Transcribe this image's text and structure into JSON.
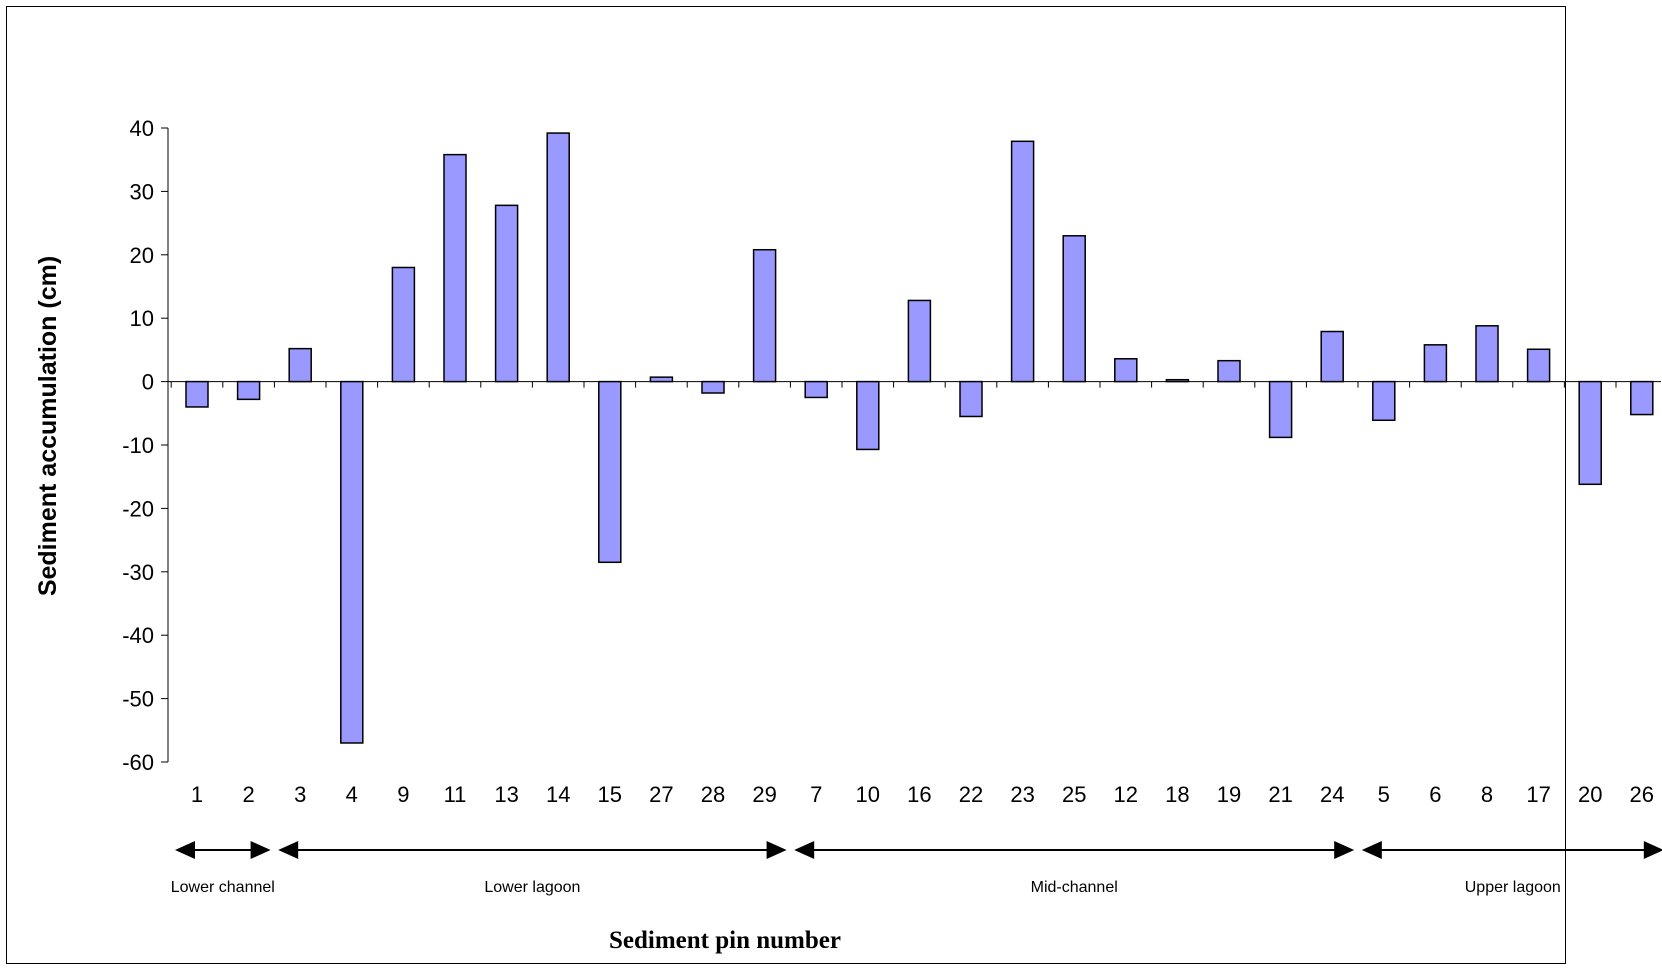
{
  "chart_data": {
    "type": "bar",
    "title": "",
    "xlabel": "Sediment pin number",
    "ylabel": "Sediment accumulation (cm)",
    "ylim": [
      -60,
      40
    ],
    "yticks": [
      40,
      30,
      20,
      10,
      0,
      -10,
      -20,
      -30,
      -40,
      -50,
      -60
    ],
    "grid": false,
    "bar_color": "#9999FF",
    "bar_edge_color": "#000000",
    "categories": [
      "1",
      "2",
      "3",
      "4",
      "9",
      "11",
      "13",
      "14",
      "15",
      "27",
      "28",
      "29",
      "7",
      "10",
      "16",
      "22",
      "23",
      "25",
      "12",
      "18",
      "19",
      "21",
      "24",
      "5",
      "6",
      "8",
      "17",
      "20",
      "26"
    ],
    "values": [
      -4,
      -2.8,
      5.2,
      -57,
      18,
      35.8,
      27.8,
      39.2,
      -28.5,
      0.7,
      -1.8,
      20.8,
      -2.5,
      -10.7,
      12.8,
      -5.5,
      37.9,
      23,
      3.6,
      0.3,
      3.3,
      -8.8,
      7.9,
      -6.1,
      5.8,
      8.8,
      5.1,
      -16.2,
      -5.2
    ],
    "groups": [
      {
        "label": "Lower channel",
        "from": 0,
        "to": 1
      },
      {
        "label": "Lower lagoon",
        "from": 2,
        "to": 11
      },
      {
        "label": "Mid-channel",
        "from": 12,
        "to": 22
      },
      {
        "label": "Upper lagoon",
        "from": 23,
        "to": 28
      }
    ]
  }
}
